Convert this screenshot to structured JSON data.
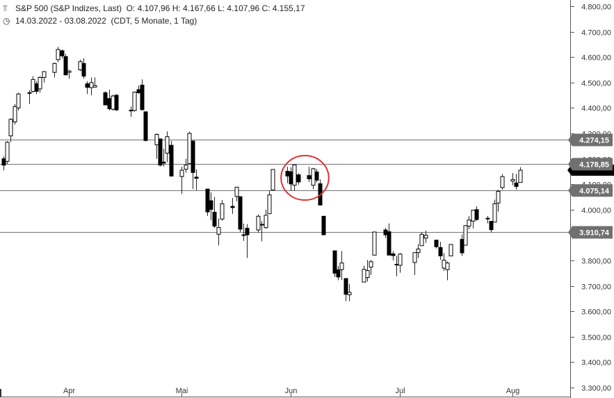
{
  "header": {
    "title": "S&P 500 (S&P Indizes, Last)",
    "ohlc": "O: 4.107,96  H: 4.167,66  L: 4.107,96  C: 4.155,17",
    "range": "14.03.2022 - 03.08.2022",
    "meta": "(CDT, 5 Monate, 1 Tag)",
    "chart_icon": "candlestick-icon",
    "clock_icon": "clock-icon"
  },
  "chart_data": {
    "type": "candlestick",
    "y_axis": {
      "min": 3300,
      "max": 4800,
      "ticks": [
        3300,
        3400,
        3500,
        3600,
        3700,
        3800,
        3900,
        4000,
        4100,
        4200,
        4300,
        4400,
        4500,
        4600,
        4700,
        4800
      ],
      "tick_labels": [
        "3.300,00",
        "3.400,00",
        "3.500,00",
        "3.600,00",
        "3.700,00",
        "3.800,00",
        "3.900,00",
        "4.000,00",
        "4.100,00",
        "4.200,00",
        "4.300,00",
        "4.400,00",
        "4.500,00",
        "4.600,00",
        "4.700,00",
        "4.800,00"
      ],
      "position": "right"
    },
    "x_axis": {
      "labels": [
        {
          "label": "Apr",
          "date": "2022-04-01"
        },
        {
          "label": "Mai",
          "date": "2022-05-02"
        },
        {
          "label": "Jun",
          "date": "2022-06-01"
        },
        {
          "label": "Jul",
          "date": "2022-07-01"
        },
        {
          "label": "Aug",
          "date": "2022-08-01"
        }
      ]
    },
    "levels": [
      {
        "value": 4274.15,
        "label": "4.274,15"
      },
      {
        "value": 4178.85,
        "label": "4.178,85"
      },
      {
        "value": 4075.14,
        "label": "4.075,14"
      },
      {
        "value": 3910.74,
        "label": "3.910,74"
      }
    ],
    "last_price": {
      "value": 4155.17
    },
    "annotation": {
      "shape": "circle",
      "color": "#e03030",
      "from": "2022-06-01",
      "to": "2022-06-08"
    },
    "candles": [
      {
        "date": "2022-03-14",
        "o": 4200,
        "h": 4210,
        "l": 4155,
        "c": 4175
      },
      {
        "date": "2022-03-15",
        "o": 4190,
        "h": 4270,
        "l": 4180,
        "c": 4265
      },
      {
        "date": "2022-03-16",
        "o": 4290,
        "h": 4360,
        "l": 4265,
        "c": 4355
      },
      {
        "date": "2022-03-17",
        "o": 4345,
        "h": 4415,
        "l": 4335,
        "c": 4405
      },
      {
        "date": "2022-03-18",
        "o": 4400,
        "h": 4460,
        "l": 4390,
        "c": 4455
      },
      {
        "date": "2022-03-21",
        "o": 4460,
        "h": 4470,
        "l": 4415,
        "c": 4460
      },
      {
        "date": "2022-03-22",
        "o": 4465,
        "h": 4525,
        "l": 4460,
        "c": 4512
      },
      {
        "date": "2022-03-23",
        "o": 4495,
        "h": 4505,
        "l": 4455,
        "c": 4465
      },
      {
        "date": "2022-03-24",
        "o": 4475,
        "h": 4525,
        "l": 4460,
        "c": 4520
      },
      {
        "date": "2022-03-25",
        "o": 4520,
        "h": 4545,
        "l": 4500,
        "c": 4543
      },
      {
        "date": "2022-03-28",
        "o": 4540,
        "h": 4578,
        "l": 4520,
        "c": 4575
      },
      {
        "date": "2022-03-29",
        "o": 4590,
        "h": 4640,
        "l": 4580,
        "c": 4630
      },
      {
        "date": "2022-03-30",
        "o": 4625,
        "h": 4630,
        "l": 4595,
        "c": 4605
      },
      {
        "date": "2022-03-31",
        "o": 4602,
        "h": 4612,
        "l": 4530,
        "c": 4530
      },
      {
        "date": "2022-04-01",
        "o": 4540,
        "h": 4550,
        "l": 4515,
        "c": 4545
      },
      {
        "date": "2022-04-04",
        "o": 4550,
        "h": 4590,
        "l": 4545,
        "c": 4582
      },
      {
        "date": "2022-04-05",
        "o": 4575,
        "h": 4595,
        "l": 4515,
        "c": 4525
      },
      {
        "date": "2022-04-06",
        "o": 4495,
        "h": 4505,
        "l": 4455,
        "c": 4481
      },
      {
        "date": "2022-04-07",
        "o": 4480,
        "h": 4520,
        "l": 4450,
        "c": 4500
      },
      {
        "date": "2022-04-08",
        "o": 4482,
        "h": 4520,
        "l": 4485,
        "c": 4488
      },
      {
        "date": "2022-04-11",
        "o": 4460,
        "h": 4465,
        "l": 4410,
        "c": 4412
      },
      {
        "date": "2022-04-12",
        "o": 4437,
        "h": 4472,
        "l": 4390,
        "c": 4397
      },
      {
        "date": "2022-04-13",
        "o": 4395,
        "h": 4452,
        "l": 4390,
        "c": 4447
      },
      {
        "date": "2022-04-14",
        "o": 4450,
        "h": 4455,
        "l": 4388,
        "c": 4392
      },
      {
        "date": "2022-04-18",
        "o": 4390,
        "h": 4405,
        "l": 4365,
        "c": 4391
      },
      {
        "date": "2022-04-19",
        "o": 4390,
        "h": 4465,
        "l": 4385,
        "c": 4462
      },
      {
        "date": "2022-04-20",
        "o": 4472,
        "h": 4488,
        "l": 4455,
        "c": 4460
      },
      {
        "date": "2022-04-21",
        "o": 4490,
        "h": 4512,
        "l": 4390,
        "c": 4393
      },
      {
        "date": "2022-04-22",
        "o": 4385,
        "h": 4385,
        "l": 4268,
        "c": 4272
      },
      {
        "date": "2022-04-25",
        "o": 4255,
        "h": 4300,
        "l": 4200,
        "c": 4296
      },
      {
        "date": "2022-04-26",
        "o": 4278,
        "h": 4278,
        "l": 4170,
        "c": 4175
      },
      {
        "date": "2022-04-27",
        "o": 4187,
        "h": 4240,
        "l": 4170,
        "c": 4183
      },
      {
        "date": "2022-04-28",
        "o": 4222,
        "h": 4308,
        "l": 4187,
        "c": 4287
      },
      {
        "date": "2022-04-29",
        "o": 4253,
        "h": 4270,
        "l": 4130,
        "c": 4132
      },
      {
        "date": "2022-05-02",
        "o": 4130,
        "h": 4169,
        "l": 4062,
        "c": 4155
      },
      {
        "date": "2022-05-03",
        "o": 4159,
        "h": 4200,
        "l": 4145,
        "c": 4175
      },
      {
        "date": "2022-05-04",
        "o": 4181,
        "h": 4307,
        "l": 4177,
        "c": 4300
      },
      {
        "date": "2022-05-05",
        "o": 4270,
        "h": 4270,
        "l": 4081,
        "c": 4146
      },
      {
        "date": "2022-05-06",
        "o": 4128,
        "h": 4158,
        "l": 4076,
        "c": 4123
      },
      {
        "date": "2022-05-09",
        "o": 4081,
        "h": 4081,
        "l": 3975,
        "c": 3991
      },
      {
        "date": "2022-05-10",
        "o": 4035,
        "h": 4068,
        "l": 3958,
        "c": 4001
      },
      {
        "date": "2022-05-11",
        "o": 3990,
        "h": 4050,
        "l": 3928,
        "c": 3935
      },
      {
        "date": "2022-05-12",
        "o": 3903,
        "h": 3965,
        "l": 3859,
        "c": 3930
      },
      {
        "date": "2022-05-13",
        "o": 3963,
        "h": 4038,
        "l": 3957,
        "c": 4023
      },
      {
        "date": "2022-05-16",
        "o": 4013,
        "h": 4046,
        "l": 3983,
        "c": 4008
      },
      {
        "date": "2022-05-17",
        "o": 4052,
        "h": 4090,
        "l": 4033,
        "c": 4088
      },
      {
        "date": "2022-05-18",
        "o": 4051,
        "h": 4051,
        "l": 3912,
        "c": 3923
      },
      {
        "date": "2022-05-19",
        "o": 3899,
        "h": 3945,
        "l": 3877,
        "c": 3901
      },
      {
        "date": "2022-05-20",
        "o": 3927,
        "h": 3943,
        "l": 3810,
        "c": 3901
      },
      {
        "date": "2022-05-23",
        "o": 3920,
        "h": 3981,
        "l": 3909,
        "c": 3974
      },
      {
        "date": "2022-05-24",
        "o": 3942,
        "h": 3955,
        "l": 3875,
        "c": 3941
      },
      {
        "date": "2022-05-25",
        "o": 3929,
        "h": 3999,
        "l": 3925,
        "c": 3978
      },
      {
        "date": "2022-05-26",
        "o": 3984,
        "h": 4075,
        "l": 3984,
        "c": 4058
      },
      {
        "date": "2022-05-27",
        "o": 4077,
        "h": 4158,
        "l": 4077,
        "c": 4158
      },
      {
        "date": "2022-05-31",
        "o": 4151,
        "h": 4168,
        "l": 4104,
        "c": 4132
      },
      {
        "date": "2022-06-01",
        "o": 4149,
        "h": 4166,
        "l": 4074,
        "c": 4101
      },
      {
        "date": "2022-06-02",
        "o": 4096,
        "h": 4177,
        "l": 4074,
        "c": 4176
      },
      {
        "date": "2022-06-03",
        "o": 4137,
        "h": 4143,
        "l": 4098,
        "c": 4109
      },
      {
        "date": "2022-06-06",
        "o": 4134,
        "h": 4168,
        "l": 4109,
        "c": 4121
      },
      {
        "date": "2022-06-07",
        "o": 4096,
        "h": 4164,
        "l": 4080,
        "c": 4161
      },
      {
        "date": "2022-06-08",
        "o": 4148,
        "h": 4160,
        "l": 4107,
        "c": 4116
      },
      {
        "date": "2022-06-09",
        "o": 4102,
        "h": 4119,
        "l": 4017,
        "c": 4018
      },
      {
        "date": "2022-06-10",
        "o": 3974,
        "h": 3974,
        "l": 3900,
        "c": 3901
      },
      {
        "date": "2022-06-13",
        "o": 3838,
        "h": 3838,
        "l": 3735,
        "c": 3750
      },
      {
        "date": "2022-06-14",
        "o": 3763,
        "h": 3778,
        "l": 3722,
        "c": 3735
      },
      {
        "date": "2022-06-15",
        "o": 3764,
        "h": 3837,
        "l": 3723,
        "c": 3790
      },
      {
        "date": "2022-06-16",
        "o": 3729,
        "h": 3729,
        "l": 3640,
        "c": 3667
      },
      {
        "date": "2022-06-17",
        "o": 3665,
        "h": 3707,
        "l": 3640,
        "c": 3675
      },
      {
        "date": "2022-06-21",
        "o": 3715,
        "h": 3779,
        "l": 3715,
        "c": 3765
      },
      {
        "date": "2022-06-22",
        "o": 3733,
        "h": 3802,
        "l": 3717,
        "c": 3760
      },
      {
        "date": "2022-06-23",
        "o": 3774,
        "h": 3802,
        "l": 3743,
        "c": 3795
      },
      {
        "date": "2022-06-24",
        "o": 3821,
        "h": 3914,
        "l": 3821,
        "c": 3912
      },
      {
        "date": "2022-06-27",
        "o": 3920,
        "h": 3928,
        "l": 3889,
        "c": 3901
      },
      {
        "date": "2022-06-28",
        "o": 3913,
        "h": 3946,
        "l": 3820,
        "c": 3821
      },
      {
        "date": "2022-06-29",
        "o": 3826,
        "h": 3837,
        "l": 3800,
        "c": 3819
      },
      {
        "date": "2022-06-30",
        "o": 3785,
        "h": 3818,
        "l": 3738,
        "c": 3785
      },
      {
        "date": "2022-07-01",
        "o": 3781,
        "h": 3829,
        "l": 3752,
        "c": 3825
      },
      {
        "date": "2022-07-05",
        "o": 3792,
        "h": 3832,
        "l": 3743,
        "c": 3831
      },
      {
        "date": "2022-07-06",
        "o": 3831,
        "h": 3865,
        "l": 3810,
        "c": 3845
      },
      {
        "date": "2022-07-07",
        "o": 3858,
        "h": 3910,
        "l": 3858,
        "c": 3903
      },
      {
        "date": "2022-07-08",
        "o": 3888,
        "h": 3918,
        "l": 3869,
        "c": 3899
      },
      {
        "date": "2022-07-11",
        "o": 3880,
        "h": 3880,
        "l": 3847,
        "c": 3854
      },
      {
        "date": "2022-07-12",
        "o": 3851,
        "h": 3873,
        "l": 3802,
        "c": 3818
      },
      {
        "date": "2022-07-13",
        "o": 3770,
        "h": 3829,
        "l": 3759,
        "c": 3801
      },
      {
        "date": "2022-07-14",
        "o": 3764,
        "h": 3796,
        "l": 3722,
        "c": 3790
      },
      {
        "date": "2022-07-15",
        "o": 3818,
        "h": 3863,
        "l": 3817,
        "c": 3863
      },
      {
        "date": "2022-07-18",
        "o": 3883,
        "h": 3902,
        "l": 3818,
        "c": 3830
      },
      {
        "date": "2022-07-19",
        "o": 3860,
        "h": 3939,
        "l": 3860,
        "c": 3937
      },
      {
        "date": "2022-07-20",
        "o": 3935,
        "h": 3975,
        "l": 3923,
        "c": 3959
      },
      {
        "date": "2022-07-21",
        "o": 3955,
        "h": 3999,
        "l": 3926,
        "c": 3998
      },
      {
        "date": "2022-07-22",
        "o": 4000,
        "h": 4013,
        "l": 3956,
        "c": 3961
      },
      {
        "date": "2022-07-25",
        "o": 3965,
        "h": 3975,
        "l": 3946,
        "c": 3966
      },
      {
        "date": "2022-07-26",
        "o": 3954,
        "h": 3954,
        "l": 3910,
        "c": 3921
      },
      {
        "date": "2022-07-27",
        "o": 3951,
        "h": 4039,
        "l": 3951,
        "c": 4023
      },
      {
        "date": "2022-07-28",
        "o": 4026,
        "h": 4078,
        "l": 3992,
        "c": 4072
      },
      {
        "date": "2022-07-29",
        "o": 4087,
        "h": 4140,
        "l": 4079,
        "c": 4130
      },
      {
        "date": "2022-08-01",
        "o": 4112,
        "h": 4144,
        "l": 4096,
        "c": 4118
      },
      {
        "date": "2022-08-02",
        "o": 4105,
        "h": 4140,
        "l": 4079,
        "c": 4091
      },
      {
        "date": "2022-08-03",
        "o": 4107,
        "h": 4167,
        "l": 4107,
        "c": 4155
      }
    ],
    "colors": {
      "background": "#ffffff",
      "up_fill": "#ffffff",
      "down_fill": "#000000",
      "wick": "#222222",
      "level_line": "#707070",
      "level_label_bg": "#707070",
      "last_label_bg": "#000000",
      "annotation": "#e03030"
    }
  }
}
